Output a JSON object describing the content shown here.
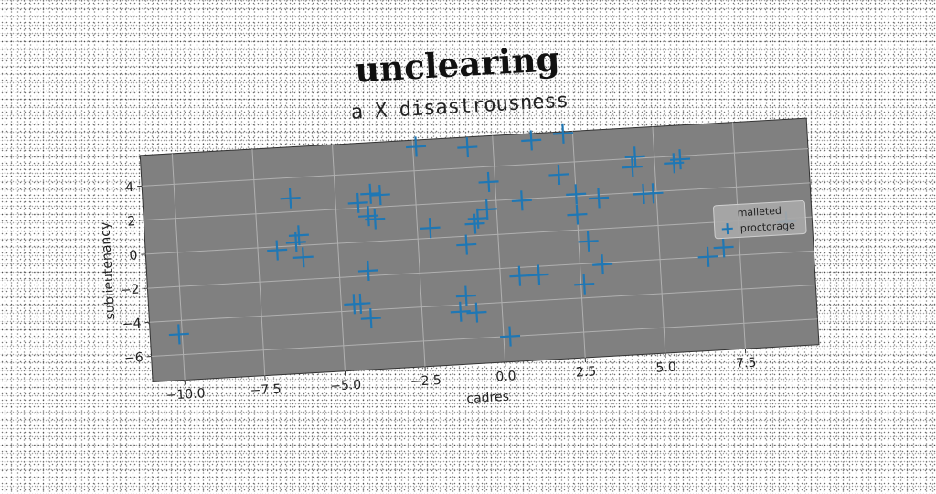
{
  "chart_data": {
    "type": "scatter",
    "title": "unclearing",
    "subtitle": "a X disastrousness",
    "xlabel": "cadres",
    "ylabel": "sublieutenancy",
    "xlim": [
      -11.0,
      9.8
    ],
    "ylim": [
      -7.5,
      5.8
    ],
    "xticks": [
      "−10.0",
      "−7.5",
      "−5.0",
      "−2.5",
      "0.0",
      "2.5",
      "5.0",
      "7.5"
    ],
    "yticks": [
      "4",
      "2",
      "0",
      "−2",
      "−4",
      "−6"
    ],
    "grid": true,
    "legend": {
      "position": "right",
      "title": "malleted",
      "entries": [
        "proctorage"
      ]
    },
    "colors": {
      "plot_bg": "#808080",
      "marker": "#1f77b4",
      "grid": "#b0b0b0"
    },
    "marker": "plus",
    "series": [
      {
        "name": "proctorage",
        "points": [
          [
            -10.1,
            -4.8
          ],
          [
            -6.4,
            2.8
          ],
          [
            -6.2,
            0.6
          ],
          [
            -6.3,
            0.2
          ],
          [
            -6.1,
            -0.7
          ],
          [
            -6.9,
            -0.2
          ],
          [
            -4.3,
            2.3
          ],
          [
            -3.9,
            2.8
          ],
          [
            -3.6,
            2.7
          ],
          [
            -4.0,
            1.5
          ],
          [
            -3.8,
            1.3
          ],
          [
            -4.1,
            -1.7
          ],
          [
            -4.6,
            -3.6
          ],
          [
            -4.4,
            -3.6
          ],
          [
            -4.1,
            -4.5
          ],
          [
            -2.4,
            5.4
          ],
          [
            -2.1,
            0.6
          ],
          [
            -1.0,
            -0.5
          ],
          [
            -1.1,
            -3.5
          ],
          [
            -1.3,
            -4.4
          ],
          [
            -0.8,
            -4.5
          ],
          [
            -0.8,
            5.2
          ],
          [
            -0.2,
            3.1
          ],
          [
            -0.3,
            1.5
          ],
          [
            -0.6,
            1.0
          ],
          [
            -0.7,
            0.7
          ],
          [
            0.8,
            1.9
          ],
          [
            0.6,
            -2.5
          ],
          [
            0.2,
            -6.0
          ],
          [
            1.2,
            5.4
          ],
          [
            1.2,
            -2.5
          ],
          [
            2.0,
            3.3
          ],
          [
            2.2,
            5.7
          ],
          [
            2.5,
            2.1
          ],
          [
            2.5,
            0.9
          ],
          [
            2.6,
            -3.2
          ],
          [
            2.8,
            -0.7
          ],
          [
            3.2,
            -2.1
          ],
          [
            3.2,
            1.8
          ],
          [
            4.3,
            3.5
          ],
          [
            4.4,
            4.1
          ],
          [
            4.6,
            1.9
          ],
          [
            4.9,
            1.9
          ],
          [
            5.6,
            3.6
          ],
          [
            5.8,
            3.8
          ],
          [
            6.5,
            -2.0
          ],
          [
            7.0,
            -1.5
          ],
          [
            9.0,
            -0.2
          ]
        ]
      }
    ]
  }
}
